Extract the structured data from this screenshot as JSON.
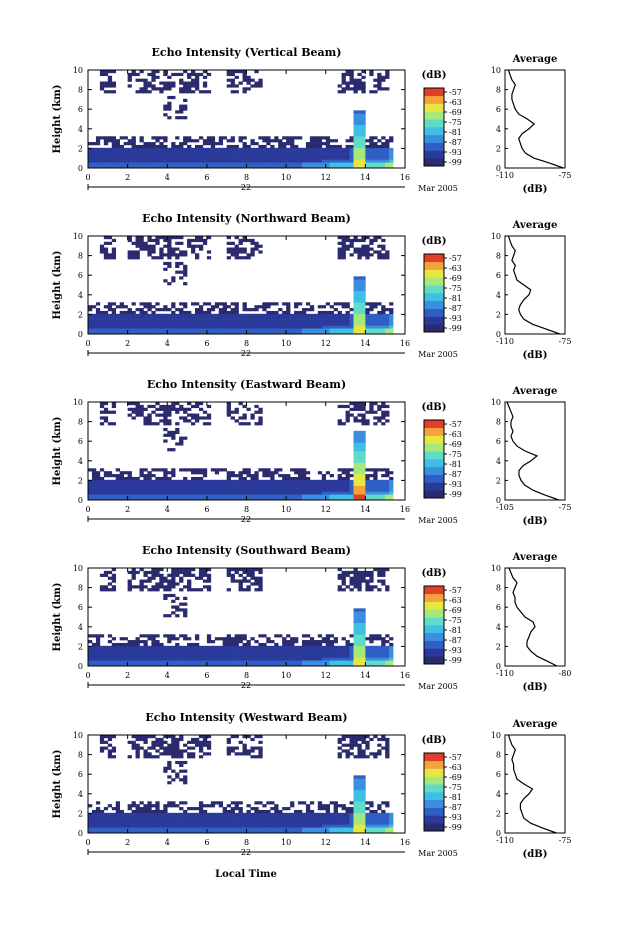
{
  "figure": {
    "xlabel": "Local Time",
    "date_label": "Mar 2005",
    "day_label": "22",
    "colorbar_unit": "(dB)",
    "colorbar_ticks": [
      "-57",
      "-63",
      "-69",
      "-75",
      "-81",
      "-87",
      "-93",
      "-99"
    ],
    "colormap": [
      "#2a2a6e",
      "#2b3a9a",
      "#2f5fc4",
      "#3a8ee0",
      "#3fbfe6",
      "#5fdcc8",
      "#a7e87a",
      "#e8e640",
      "#f6a23a",
      "#e0402a"
    ]
  },
  "chart_data": [
    {
      "type": "heatmap",
      "title": "Echo Intensity (Vertical Beam)",
      "ylabel": "Height (km)",
      "xlabel": "",
      "x_ticks": [
        "0",
        "2",
        "4",
        "6",
        "8",
        "10",
        "12",
        "14",
        "16"
      ],
      "y_ticks": [
        "0",
        "2",
        "4",
        "6",
        "8",
        "10"
      ],
      "xlim": [
        0,
        16
      ],
      "ylim": [
        0,
        10
      ],
      "profile": {
        "title": "Average",
        "xlabel": "(dB)",
        "x_ticks": [
          "-110",
          "-75"
        ],
        "xlim": [
          -110,
          -75
        ],
        "height": [
          0,
          0.5,
          1,
          1.5,
          2,
          2.5,
          3,
          3.5,
          4,
          4.5,
          5,
          5.5,
          6,
          6.5,
          7,
          7.5,
          8,
          8.5,
          9,
          9.5,
          10
        ],
        "values": [
          -76,
          -84,
          -93,
          -98,
          -100,
          -101,
          -102,
          -100,
          -96,
          -93,
          -97,
          -102,
          -104,
          -105,
          -106,
          -106,
          -105,
          -104,
          -106,
          -107,
          -108
        ]
      }
    },
    {
      "type": "heatmap",
      "title": "Echo Intensity (Northward Beam)",
      "ylabel": "Height (km)",
      "xlabel": "",
      "x_ticks": [
        "0",
        "2",
        "4",
        "6",
        "8",
        "10",
        "12",
        "14",
        "16"
      ],
      "y_ticks": [
        "0",
        "2",
        "4",
        "6",
        "8",
        "10"
      ],
      "xlim": [
        0,
        16
      ],
      "ylim": [
        0,
        10
      ],
      "profile": {
        "title": "Average",
        "xlabel": "(dB)",
        "x_ticks": [
          "-110",
          "-75"
        ],
        "xlim": [
          -110,
          -75
        ],
        "height": [
          0,
          0.5,
          1,
          1.5,
          2,
          2.5,
          3,
          3.5,
          4,
          4.5,
          5,
          5.5,
          6,
          6.5,
          7,
          7.5,
          8,
          8.5,
          9,
          9.5,
          10
        ],
        "values": [
          -78,
          -86,
          -94,
          -99,
          -101,
          -102,
          -101,
          -99,
          -96,
          -95,
          -99,
          -103,
          -104,
          -105,
          -104,
          -106,
          -105,
          -104,
          -106,
          -107,
          -108
        ]
      }
    },
    {
      "type": "heatmap",
      "title": "Echo Intensity (Eastward Beam)",
      "ylabel": "Height (km)",
      "xlabel": "",
      "x_ticks": [
        "0",
        "2",
        "4",
        "6",
        "8",
        "10",
        "12",
        "14",
        "16"
      ],
      "y_ticks": [
        "0",
        "2",
        "4",
        "6",
        "8",
        "10"
      ],
      "xlim": [
        0,
        16
      ],
      "ylim": [
        0,
        10
      ],
      "profile": {
        "title": "Average",
        "xlabel": "(dB)",
        "x_ticks": [
          "-105",
          "-75"
        ],
        "xlim": [
          -105,
          -75
        ],
        "height": [
          0,
          0.5,
          1,
          1.5,
          2,
          2.5,
          3,
          3.5,
          4,
          4.5,
          5,
          5.5,
          6,
          6.5,
          7,
          7.5,
          8,
          8.5,
          9,
          9.5,
          10
        ],
        "values": [
          -78,
          -85,
          -91,
          -95,
          -97,
          -98,
          -98,
          -96,
          -92,
          -89,
          -95,
          -99,
          -101,
          -102,
          -101,
          -102,
          -102,
          -101,
          -102,
          -103,
          -104
        ]
      }
    },
    {
      "type": "heatmap",
      "title": "Echo Intensity (Southward Beam)",
      "ylabel": "Height (km)",
      "xlabel": "",
      "x_ticks": [
        "0",
        "2",
        "4",
        "6",
        "8",
        "10",
        "12",
        "14",
        "16"
      ],
      "y_ticks": [
        "0",
        "2",
        "4",
        "6",
        "8",
        "10"
      ],
      "xlim": [
        0,
        16
      ],
      "ylim": [
        0,
        10
      ],
      "profile": {
        "title": "Average",
        "xlabel": "(dB)",
        "x_ticks": [
          "-110",
          "-80"
        ],
        "xlim": [
          -110,
          -80
        ],
        "height": [
          0,
          0.5,
          1,
          1.5,
          2,
          2.5,
          3,
          3.5,
          4,
          4.5,
          5,
          5.5,
          6,
          6.5,
          7,
          7.5,
          8,
          8.5,
          9,
          9.5,
          10
        ],
        "values": [
          -84,
          -89,
          -94,
          -97,
          -99,
          -99,
          -98,
          -97,
          -95,
          -96,
          -100,
          -102,
          -104,
          -105,
          -105,
          -106,
          -105,
          -104,
          -106,
          -107,
          -108
        ]
      }
    },
    {
      "type": "heatmap",
      "title": "Echo Intensity (Westward Beam)",
      "ylabel": "Height (km)",
      "xlabel": "Local Time",
      "x_ticks": [
        "0",
        "2",
        "4",
        "6",
        "8",
        "10",
        "12",
        "14",
        "16"
      ],
      "y_ticks": [
        "0",
        "2",
        "4",
        "6",
        "8",
        "10"
      ],
      "xlim": [
        0,
        16
      ],
      "ylim": [
        0,
        10
      ],
      "profile": {
        "title": "Average",
        "xlabel": "(dB)",
        "x_ticks": [
          "-110",
          "-75"
        ],
        "xlim": [
          -110,
          -75
        ],
        "height": [
          0,
          0.5,
          1,
          1.5,
          2,
          2.5,
          3,
          3.5,
          4,
          4.5,
          5,
          5.5,
          6,
          6.5,
          7,
          7.5,
          8,
          8.5,
          9,
          9.5,
          10
        ],
        "values": [
          -80,
          -88,
          -95,
          -99,
          -100,
          -101,
          -101,
          -99,
          -96,
          -94,
          -99,
          -103,
          -104,
          -105,
          -105,
          -106,
          -105,
          -104,
          -106,
          -107,
          -108
        ]
      }
    }
  ]
}
